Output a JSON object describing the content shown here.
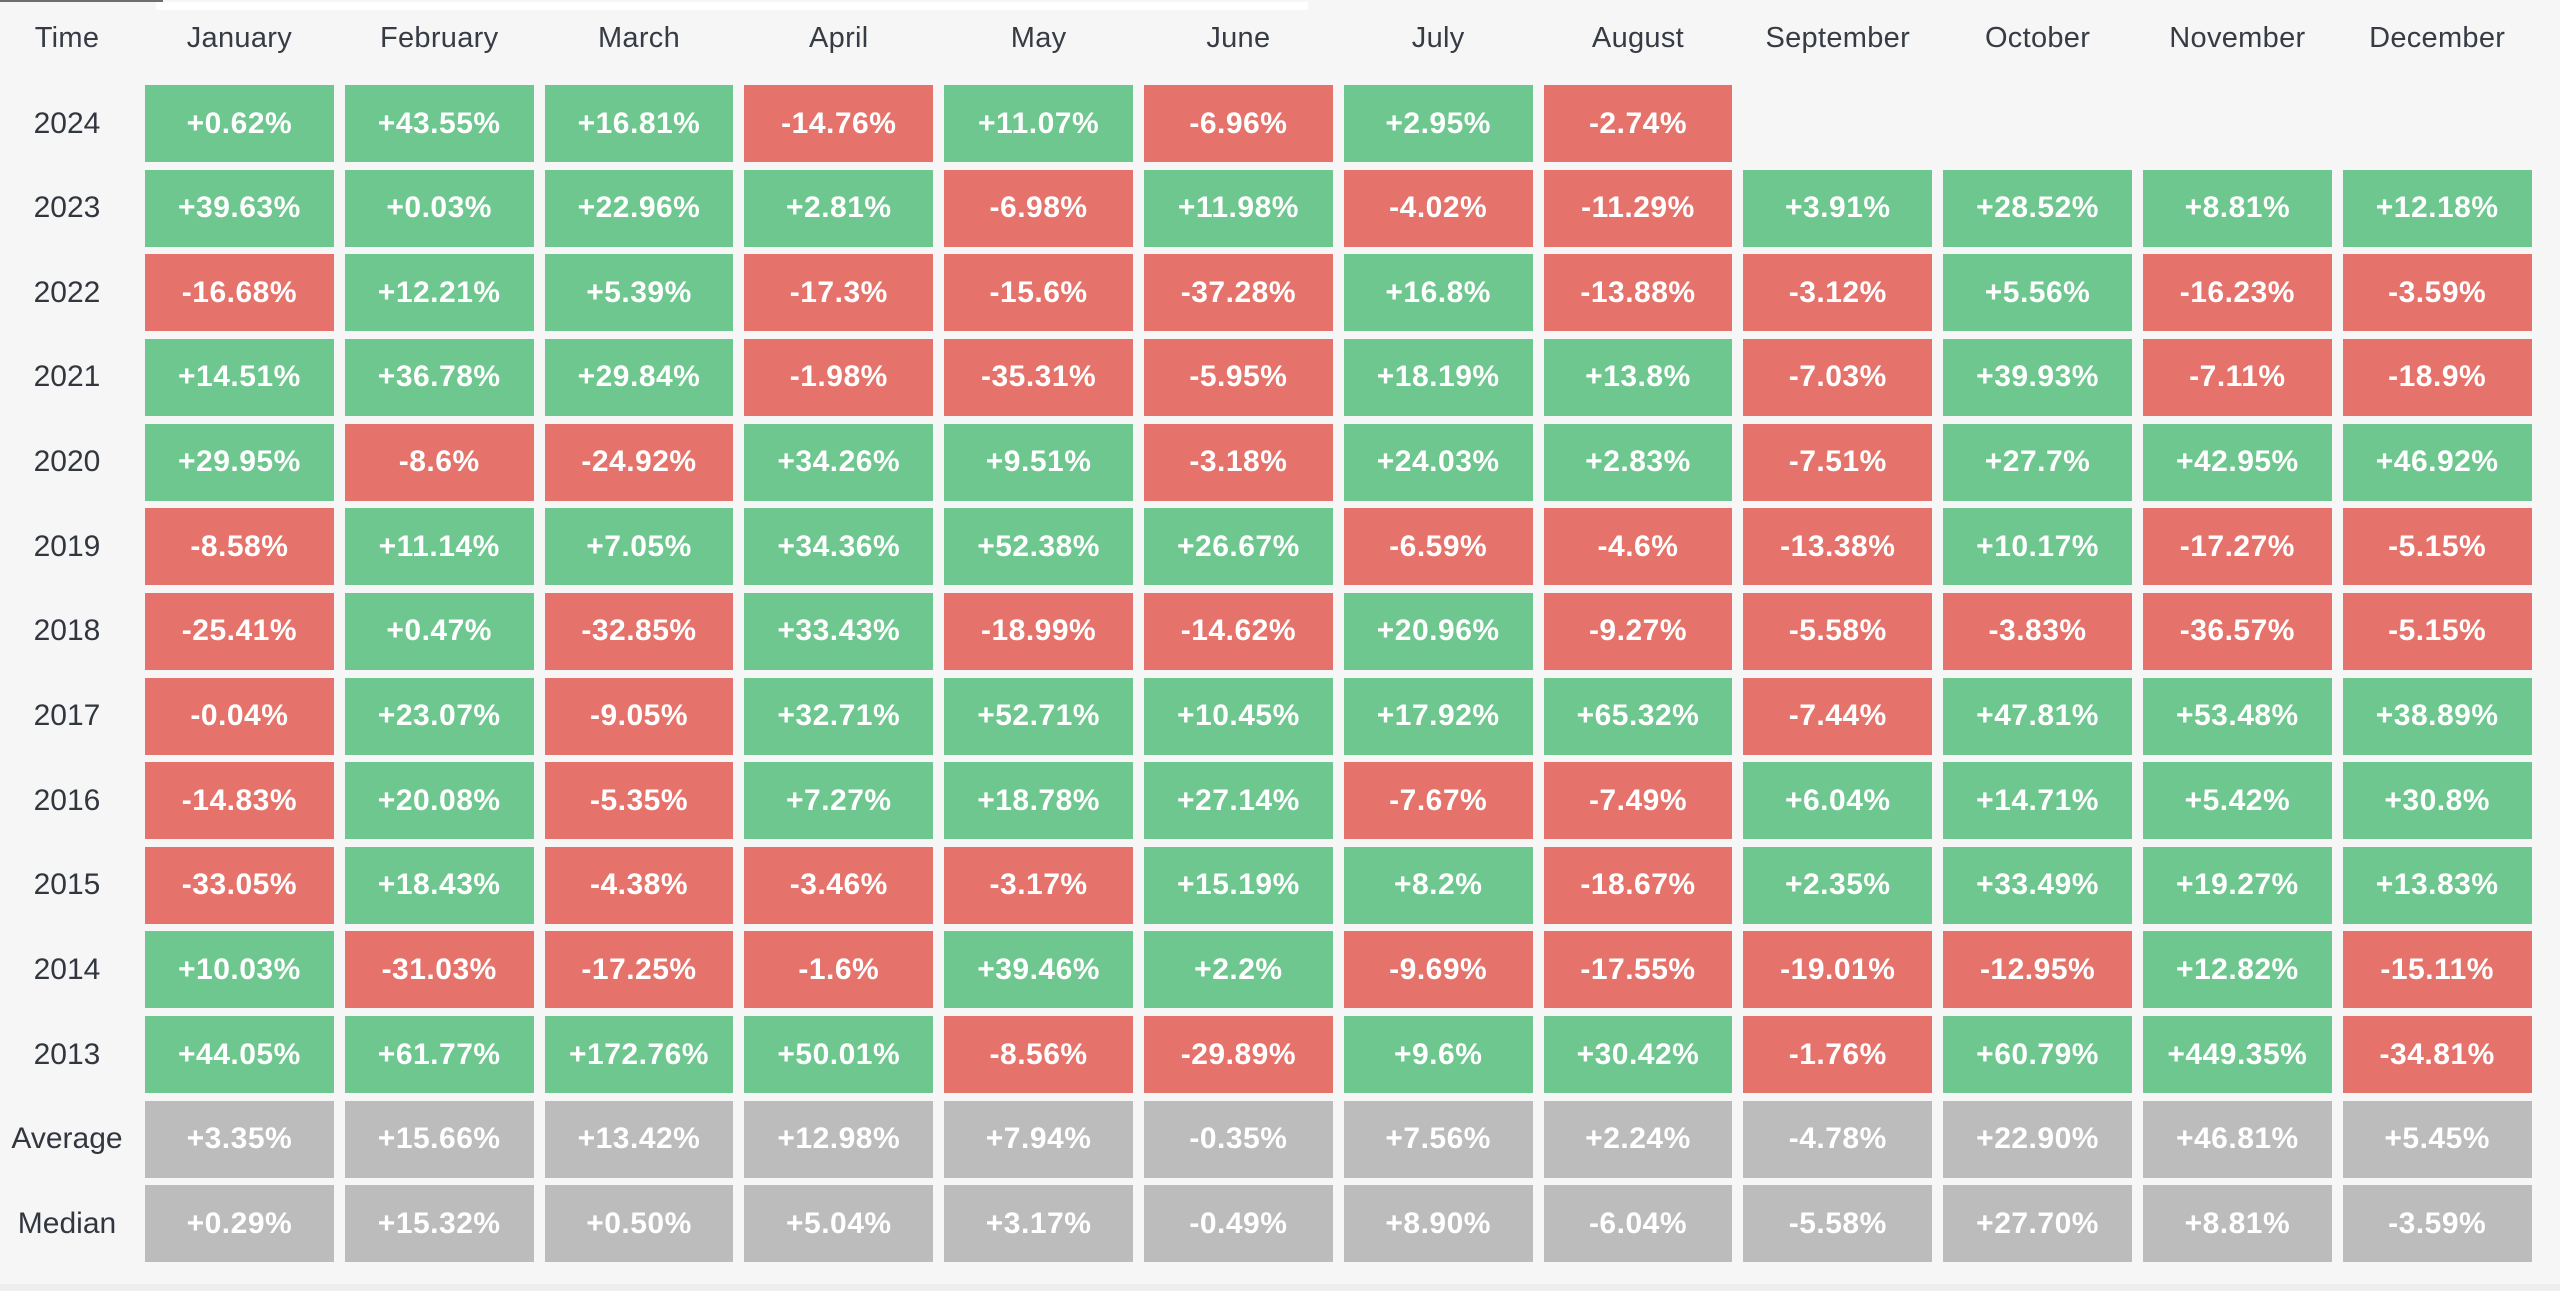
{
  "table": {
    "corner_label": "Time",
    "columns": [
      "January",
      "February",
      "March",
      "April",
      "May",
      "June",
      "July",
      "August",
      "September",
      "October",
      "November",
      "December"
    ],
    "rows": [
      {
        "label": "2024",
        "type": "year",
        "values": [
          "+0.62%",
          "+43.55%",
          "+16.81%",
          "-14.76%",
          "+11.07%",
          "-6.96%",
          "+2.95%",
          "-2.74%",
          null,
          null,
          null,
          null
        ]
      },
      {
        "label": "2023",
        "type": "year",
        "values": [
          "+39.63%",
          "+0.03%",
          "+22.96%",
          "+2.81%",
          "-6.98%",
          "+11.98%",
          "-4.02%",
          "-11.29%",
          "+3.91%",
          "+28.52%",
          "+8.81%",
          "+12.18%"
        ]
      },
      {
        "label": "2022",
        "type": "year",
        "values": [
          "-16.68%",
          "+12.21%",
          "+5.39%",
          "-17.3%",
          "-15.6%",
          "-37.28%",
          "+16.8%",
          "-13.88%",
          "-3.12%",
          "+5.56%",
          "-16.23%",
          "-3.59%"
        ]
      },
      {
        "label": "2021",
        "type": "year",
        "values": [
          "+14.51%",
          "+36.78%",
          "+29.84%",
          "-1.98%",
          "-35.31%",
          "-5.95%",
          "+18.19%",
          "+13.8%",
          "-7.03%",
          "+39.93%",
          "-7.11%",
          "-18.9%"
        ]
      },
      {
        "label": "2020",
        "type": "year",
        "values": [
          "+29.95%",
          "-8.6%",
          "-24.92%",
          "+34.26%",
          "+9.51%",
          "-3.18%",
          "+24.03%",
          "+2.83%",
          "-7.51%",
          "+27.7%",
          "+42.95%",
          "+46.92%"
        ]
      },
      {
        "label": "2019",
        "type": "year",
        "values": [
          "-8.58%",
          "+11.14%",
          "+7.05%",
          "+34.36%",
          "+52.38%",
          "+26.67%",
          "-6.59%",
          "-4.6%",
          "-13.38%",
          "+10.17%",
          "-17.27%",
          "-5.15%"
        ]
      },
      {
        "label": "2018",
        "type": "year",
        "values": [
          "-25.41%",
          "+0.47%",
          "-32.85%",
          "+33.43%",
          "-18.99%",
          "-14.62%",
          "+20.96%",
          "-9.27%",
          "-5.58%",
          "-3.83%",
          "-36.57%",
          "-5.15%"
        ]
      },
      {
        "label": "2017",
        "type": "year",
        "values": [
          "-0.04%",
          "+23.07%",
          "-9.05%",
          "+32.71%",
          "+52.71%",
          "+10.45%",
          "+17.92%",
          "+65.32%",
          "-7.44%",
          "+47.81%",
          "+53.48%",
          "+38.89%"
        ]
      },
      {
        "label": "2016",
        "type": "year",
        "values": [
          "-14.83%",
          "+20.08%",
          "-5.35%",
          "+7.27%",
          "+18.78%",
          "+27.14%",
          "-7.67%",
          "-7.49%",
          "+6.04%",
          "+14.71%",
          "+5.42%",
          "+30.8%"
        ]
      },
      {
        "label": "2015",
        "type": "year",
        "values": [
          "-33.05%",
          "+18.43%",
          "-4.38%",
          "-3.46%",
          "-3.17%",
          "+15.19%",
          "+8.2%",
          "-18.67%",
          "+2.35%",
          "+33.49%",
          "+19.27%",
          "+13.83%"
        ]
      },
      {
        "label": "2014",
        "type": "year",
        "values": [
          "+10.03%",
          "-31.03%",
          "-17.25%",
          "-1.6%",
          "+39.46%",
          "+2.2%",
          "-9.69%",
          "-17.55%",
          "-19.01%",
          "-12.95%",
          "+12.82%",
          "-15.11%"
        ]
      },
      {
        "label": "2013",
        "type": "year",
        "values": [
          "+44.05%",
          "+61.77%",
          "+172.76%",
          "+50.01%",
          "-8.56%",
          "-29.89%",
          "+9.6%",
          "+30.42%",
          "-1.76%",
          "+60.79%",
          "+449.35%",
          "-34.81%"
        ]
      },
      {
        "label": "Average",
        "type": "summary",
        "values": [
          "+3.35%",
          "+15.66%",
          "+13.42%",
          "+12.98%",
          "+7.94%",
          "-0.35%",
          "+7.56%",
          "+2.24%",
          "-4.78%",
          "+22.90%",
          "+46.81%",
          "+5.45%"
        ]
      },
      {
        "label": "Median",
        "type": "summary",
        "values": [
          "+0.29%",
          "+15.32%",
          "+0.50%",
          "+5.04%",
          "+3.17%",
          "-0.49%",
          "+8.90%",
          "-6.04%",
          "-5.58%",
          "+27.70%",
          "+8.81%",
          "-3.59%"
        ]
      }
    ]
  },
  "colors": {
    "positive_green": "#6ec78f",
    "negative_red": "#e6736b",
    "summary_gray": "#bcbcbd",
    "cell_text": "#ffffff",
    "label_text": "#363b44",
    "page_background": "#f6f6f7"
  },
  "chart_data": {
    "type": "heatmap",
    "title": "Monthly returns (%) by month and year",
    "unit": "%",
    "columns": [
      "January",
      "February",
      "March",
      "April",
      "May",
      "June",
      "July",
      "August",
      "September",
      "October",
      "November",
      "December"
    ],
    "row_labels": [
      "2024",
      "2023",
      "2022",
      "2021",
      "2020",
      "2019",
      "2018",
      "2017",
      "2016",
      "2015",
      "2014",
      "2013",
      "Average",
      "Median"
    ],
    "values": {
      "2024": [
        0.62,
        43.55,
        16.81,
        -14.76,
        11.07,
        -6.96,
        2.95,
        -2.74,
        null,
        null,
        null,
        null
      ],
      "2023": [
        39.63,
        0.03,
        22.96,
        2.81,
        -6.98,
        11.98,
        -4.02,
        -11.29,
        3.91,
        28.52,
        8.81,
        12.18
      ],
      "2022": [
        -16.68,
        12.21,
        5.39,
        -17.3,
        -15.6,
        -37.28,
        16.8,
        -13.88,
        -3.12,
        5.56,
        -16.23,
        -3.59
      ],
      "2021": [
        14.51,
        36.78,
        29.84,
        -1.98,
        -35.31,
        -5.95,
        18.19,
        13.8,
        -7.03,
        39.93,
        -7.11,
        -18.9
      ],
      "2020": [
        29.95,
        -8.6,
        -24.92,
        34.26,
        9.51,
        -3.18,
        24.03,
        2.83,
        -7.51,
        27.7,
        42.95,
        46.92
      ],
      "2019": [
        -8.58,
        11.14,
        7.05,
        34.36,
        52.38,
        26.67,
        -6.59,
        -4.6,
        -13.38,
        10.17,
        -17.27,
        -5.15
      ],
      "2018": [
        -25.41,
        0.47,
        -32.85,
        33.43,
        -18.99,
        -14.62,
        20.96,
        -9.27,
        -5.58,
        -3.83,
        -36.57,
        -5.15
      ],
      "2017": [
        -0.04,
        23.07,
        -9.05,
        32.71,
        52.71,
        10.45,
        17.92,
        65.32,
        -7.44,
        47.81,
        53.48,
        38.89
      ],
      "2016": [
        -14.83,
        20.08,
        -5.35,
        7.27,
        18.78,
        27.14,
        -7.67,
        -7.49,
        6.04,
        14.71,
        5.42,
        30.8
      ],
      "2015": [
        -33.05,
        18.43,
        -4.38,
        -3.46,
        -3.17,
        15.19,
        8.2,
        -18.67,
        2.35,
        33.49,
        19.27,
        13.83
      ],
      "2014": [
        10.03,
        -31.03,
        -17.25,
        -1.6,
        39.46,
        2.2,
        -9.69,
        -17.55,
        -19.01,
        -12.95,
        12.82,
        -15.11
      ],
      "2013": [
        44.05,
        61.77,
        172.76,
        50.01,
        -8.56,
        -29.89,
        9.6,
        30.42,
        -1.76,
        60.79,
        449.35,
        -34.81
      ],
      "Average": [
        3.35,
        15.66,
        13.42,
        12.98,
        7.94,
        -0.35,
        7.56,
        2.24,
        -4.78,
        22.9,
        46.81,
        5.45
      ],
      "Median": [
        0.29,
        15.32,
        0.5,
        5.04,
        3.17,
        -0.49,
        8.9,
        -6.04,
        -5.58,
        27.7,
        8.81,
        -3.59
      ]
    },
    "color_rule": "positive value = green, negative value = red; Average and Median rows are gray; 2024 Sep-Dec have no data",
    "layout": {
      "legend": false,
      "grid": false,
      "first_column": "Time"
    }
  }
}
